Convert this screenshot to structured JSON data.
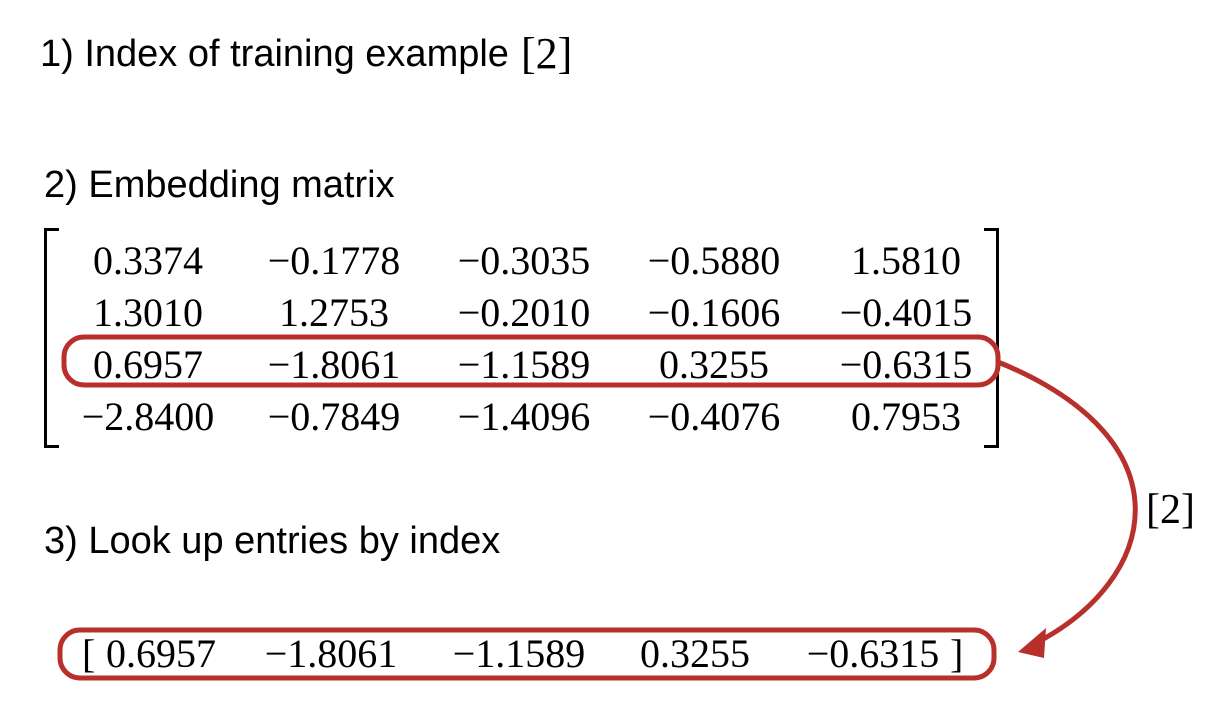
{
  "step1": {
    "label": "1) Index of training example",
    "index": "[2]"
  },
  "step2": {
    "label": "2) Embedding matrix"
  },
  "matrix": {
    "rows": [
      [
        "0.3374",
        "−0.1778",
        "−0.3035",
        "−0.5880",
        "1.5810"
      ],
      [
        "1.3010",
        "1.2753",
        "−0.2010",
        "−0.1606",
        "−0.4015"
      ],
      [
        "0.6957",
        "−1.8061",
        "−1.1589",
        "0.3255",
        "−0.6315"
      ],
      [
        "−2.8400",
        "−0.7849",
        "−1.4096",
        "−0.4076",
        "0.7953"
      ]
    ],
    "highlighted_row": 2
  },
  "step3": {
    "label": "3) Look up entries by index"
  },
  "result": {
    "open": "[",
    "close": "]",
    "values": [
      "0.6957",
      "−1.8061",
      "−1.1589",
      "0.3255",
      "−0.6315"
    ]
  },
  "arrow": {
    "label": "[2]"
  },
  "colors": {
    "highlight": "#b8302b",
    "text": "#000000"
  }
}
